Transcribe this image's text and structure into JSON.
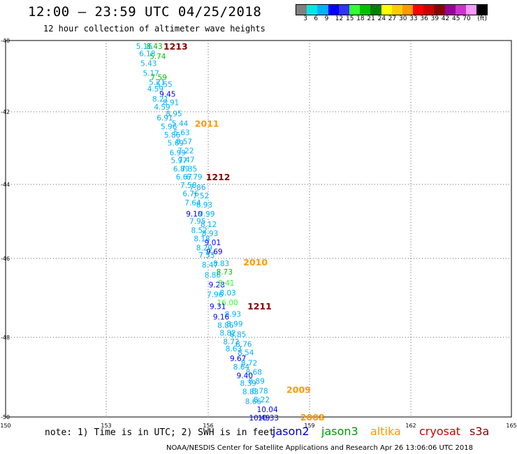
{
  "header": {
    "title": "12:00 — 23:59 UTC 04/25/2018",
    "subtitle": "12 hour collection of altimeter wave heights"
  },
  "scale": {
    "unit": "(ft)",
    "colors": [
      "#808080",
      "#00e5e5",
      "#00b0ff",
      "#0000ff",
      "#3333ff",
      "#33ff33",
      "#00c000",
      "#008000",
      "#ffff00",
      "#ffcc00",
      "#ff9900",
      "#ff0000",
      "#cc0000",
      "#880000",
      "#990099",
      "#cc33cc",
      "#ff99ff",
      "#000000"
    ],
    "labels": [
      "3",
      "6",
      "9",
      "12",
      "15",
      "18",
      "21",
      "24",
      "27",
      "30",
      "33",
      "36",
      "39",
      "42",
      "45",
      "70"
    ]
  },
  "chart_data": {
    "type": "scatter",
    "xlabel": "",
    "ylabel": "",
    "xlim": [
      150,
      165
    ],
    "ylim": [
      -50,
      -40
    ],
    "x_ticks": [
      "150",
      "153",
      "156",
      "159",
      "162",
      "165"
    ],
    "y_ticks": [
      "-40",
      "-42",
      "-44",
      "-46",
      "-48",
      "-50"
    ],
    "grid": true,
    "series": [
      {
        "name": "jason2",
        "color": "#0000cc"
      },
      {
        "name": "jason3",
        "color": "#009900"
      },
      {
        "name": "altika",
        "color": "#ff9900"
      },
      {
        "name": "cryosat",
        "color": "#cc0000"
      },
      {
        "name": "s3a",
        "color": "#880000"
      }
    ],
    "track_labels": [
      {
        "text": "1213",
        "x": 154.68,
        "y": -40.15,
        "color": "#880000"
      },
      {
        "text": "2011",
        "x": 155.61,
        "y": -42.2,
        "color": "#ff9900"
      },
      {
        "text": "1212",
        "x": 155.94,
        "y": -43.62,
        "color": "#880000"
      },
      {
        "text": "2010",
        "x": 157.05,
        "y": -45.88,
        "color": "#ff9900"
      },
      {
        "text": "1211",
        "x": 157.17,
        "y": -47.05,
        "color": "#880000"
      },
      {
        "text": "2009",
        "x": 158.33,
        "y": -49.27,
        "color": "#ff9900"
      },
      {
        "text": "2008",
        "x": 158.74,
        "y": -50.0,
        "color": "#ff9900"
      }
    ],
    "points": [
      {
        "x": 153.87,
        "y": -40.15,
        "v": "5.16",
        "c": "#00b0ff"
      },
      {
        "x": 154.17,
        "y": -40.15,
        "v": "8.43",
        "c": "#00c000"
      },
      {
        "x": 153.96,
        "y": -40.34,
        "v": "6.18",
        "c": "#00b0ff"
      },
      {
        "x": 154.27,
        "y": -40.42,
        "v": "5.74",
        "c": "#00c000"
      },
      {
        "x": 154.0,
        "y": -40.6,
        "v": "5.43",
        "c": "#00b0ff"
      },
      {
        "x": 154.07,
        "y": -40.86,
        "v": "5.17",
        "c": "#00b0ff"
      },
      {
        "x": 154.3,
        "y": -40.97,
        "v": "7.59",
        "c": "#00c000"
      },
      {
        "x": 154.25,
        "y": -41.1,
        "v": "5.21",
        "c": "#00b0ff"
      },
      {
        "x": 154.46,
        "y": -41.16,
        "v": "5.55",
        "c": "#00b0ff"
      },
      {
        "x": 154.2,
        "y": -41.28,
        "v": "4.59",
        "c": "#00b0ff"
      },
      {
        "x": 154.56,
        "y": -41.42,
        "v": "9.45",
        "c": "#0000ff"
      },
      {
        "x": 154.35,
        "y": -41.55,
        "v": "8.21",
        "c": "#00b0ff"
      },
      {
        "x": 154.66,
        "y": -41.64,
        "v": "8.91",
        "c": "#00b0ff"
      },
      {
        "x": 154.4,
        "y": -41.76,
        "v": "4.59",
        "c": "#00b0ff"
      },
      {
        "x": 154.75,
        "y": -41.94,
        "v": "8.95",
        "c": "#00b0ff"
      },
      {
        "x": 154.48,
        "y": -42.05,
        "v": "6.91",
        "c": "#00b0ff"
      },
      {
        "x": 154.93,
        "y": -42.2,
        "v": "5.44",
        "c": "#00b0ff"
      },
      {
        "x": 154.6,
        "y": -42.28,
        "v": "5.96",
        "c": "#00b0ff"
      },
      {
        "x": 154.98,
        "y": -42.44,
        "v": "5.63",
        "c": "#00b0ff"
      },
      {
        "x": 154.7,
        "y": -42.5,
        "v": "5.86",
        "c": "#00b0ff"
      },
      {
        "x": 155.05,
        "y": -42.68,
        "v": "8.57",
        "c": "#00b0ff"
      },
      {
        "x": 154.8,
        "y": -42.72,
        "v": "5.69",
        "c": "#00b0ff"
      },
      {
        "x": 155.1,
        "y": -42.92,
        "v": "7.22",
        "c": "#00b0ff"
      },
      {
        "x": 154.86,
        "y": -42.98,
        "v": "6.99",
        "c": "#00b0ff"
      },
      {
        "x": 155.12,
        "y": -43.16,
        "v": "7.47",
        "c": "#00b0ff"
      },
      {
        "x": 154.9,
        "y": -43.18,
        "v": "5.97",
        "c": "#00b0ff"
      },
      {
        "x": 155.2,
        "y": -43.4,
        "v": "7.35",
        "c": "#00b0ff"
      },
      {
        "x": 154.97,
        "y": -43.4,
        "v": "6.89",
        "c": "#00b0ff"
      },
      {
        "x": 155.05,
        "y": -43.62,
        "v": "6.67",
        "c": "#00b0ff"
      },
      {
        "x": 155.35,
        "y": -43.62,
        "v": "6.79",
        "c": "#00b0ff"
      },
      {
        "x": 155.18,
        "y": -43.84,
        "v": "7.58",
        "c": "#00b0ff"
      },
      {
        "x": 155.45,
        "y": -43.9,
        "v": "7.86",
        "c": "#00b0ff"
      },
      {
        "x": 155.25,
        "y": -44.06,
        "v": "6.76",
        "c": "#00b0ff"
      },
      {
        "x": 155.55,
        "y": -44.12,
        "v": "7.52",
        "c": "#00b0ff"
      },
      {
        "x": 155.31,
        "y": -44.3,
        "v": "7.64",
        "c": "#00b0ff"
      },
      {
        "x": 155.65,
        "y": -44.36,
        "v": "6.93",
        "c": "#00b0ff"
      },
      {
        "x": 155.35,
        "y": -44.6,
        "v": "9.10",
        "c": "#0000ff"
      },
      {
        "x": 155.72,
        "y": -44.6,
        "v": "9.99",
        "c": "#00b0ff"
      },
      {
        "x": 155.45,
        "y": -44.8,
        "v": "7.95",
        "c": "#00b0ff"
      },
      {
        "x": 155.78,
        "y": -44.88,
        "v": "8.12",
        "c": "#00b0ff"
      },
      {
        "x": 155.5,
        "y": -45.04,
        "v": "8.52",
        "c": "#00b0ff"
      },
      {
        "x": 155.82,
        "y": -45.12,
        "v": "8.93",
        "c": "#00b0ff"
      },
      {
        "x": 155.58,
        "y": -45.26,
        "v": "8.18",
        "c": "#00b0ff"
      },
      {
        "x": 155.9,
        "y": -45.36,
        "v": "9.01",
        "c": "#0000ff"
      },
      {
        "x": 155.65,
        "y": -45.5,
        "v": "8.29",
        "c": "#00b0ff"
      },
      {
        "x": 155.95,
        "y": -45.6,
        "v": "9.69",
        "c": "#0000ff"
      },
      {
        "x": 155.72,
        "y": -45.7,
        "v": "7.53",
        "c": "#00b0ff"
      },
      {
        "x": 155.82,
        "y": -45.96,
        "v": "8.47",
        "c": "#00b0ff"
      },
      {
        "x": 156.15,
        "y": -45.92,
        "v": "8.83",
        "c": "#00b0ff"
      },
      {
        "x": 155.9,
        "y": -46.22,
        "v": "8.86",
        "c": "#00b0ff"
      },
      {
        "x": 156.25,
        "y": -46.14,
        "v": "8.73",
        "c": "#00c000"
      },
      {
        "x": 156.02,
        "y": -46.48,
        "v": "9.28",
        "c": "#0000ff"
      },
      {
        "x": 156.3,
        "y": -46.44,
        "v": "8.41",
        "c": "#33ff33"
      },
      {
        "x": 155.97,
        "y": -46.74,
        "v": "7.96",
        "c": "#00b0ff"
      },
      {
        "x": 156.35,
        "y": -46.7,
        "v": "8.03",
        "c": "#00b0ff"
      },
      {
        "x": 156.27,
        "y": -46.96,
        "v": "16.00",
        "c": "#33ff33"
      },
      {
        "x": 156.05,
        "y": -47.06,
        "v": "9.31",
        "c": "#0000ff"
      },
      {
        "x": 156.5,
        "y": -47.26,
        "v": "8.93",
        "c": "#00b0ff"
      },
      {
        "x": 156.15,
        "y": -47.34,
        "v": "9.16",
        "c": "#0000ff"
      },
      {
        "x": 156.55,
        "y": -47.52,
        "v": "8.99",
        "c": "#00b0ff"
      },
      {
        "x": 156.28,
        "y": -47.56,
        "v": "8.86",
        "c": "#00b0ff"
      },
      {
        "x": 156.65,
        "y": -47.8,
        "v": "8.85",
        "c": "#00b0ff"
      },
      {
        "x": 156.35,
        "y": -47.76,
        "v": "8.82",
        "c": "#00b0ff"
      },
      {
        "x": 156.45,
        "y": -48.0,
        "v": "8.72",
        "c": "#00b0ff"
      },
      {
        "x": 156.82,
        "y": -48.06,
        "v": "8.76",
        "c": "#00b0ff"
      },
      {
        "x": 156.52,
        "y": -48.18,
        "v": "8.63",
        "c": "#00b0ff"
      },
      {
        "x": 156.88,
        "y": -48.28,
        "v": "8.54",
        "c": "#00b0ff"
      },
      {
        "x": 156.65,
        "y": -48.44,
        "v": "9.67",
        "c": "#0000ff"
      },
      {
        "x": 156.98,
        "y": -48.56,
        "v": "8.72",
        "c": "#00b0ff"
      },
      {
        "x": 156.75,
        "y": -48.66,
        "v": "8.64",
        "c": "#00b0ff"
      },
      {
        "x": 157.12,
        "y": -48.8,
        "v": "8.68",
        "c": "#00b0ff"
      },
      {
        "x": 156.85,
        "y": -48.9,
        "v": "9.40",
        "c": "#0000ff"
      },
      {
        "x": 157.2,
        "y": -49.04,
        "v": "8.89",
        "c": "#00b0ff"
      },
      {
        "x": 156.95,
        "y": -49.1,
        "v": "8.39",
        "c": "#00b0ff"
      },
      {
        "x": 157.3,
        "y": -49.3,
        "v": "8.78",
        "c": "#00b0ff"
      },
      {
        "x": 157.02,
        "y": -49.32,
        "v": "8.83",
        "c": "#00b0ff"
      },
      {
        "x": 157.35,
        "y": -49.54,
        "v": "8.22",
        "c": "#00b0ff"
      },
      {
        "x": 157.1,
        "y": -49.58,
        "v": "8.66",
        "c": "#00b0ff"
      },
      {
        "x": 157.45,
        "y": -49.8,
        "v": "10.04",
        "c": "#0000ff"
      },
      {
        "x": 157.22,
        "y": -50.02,
        "v": "10.49",
        "c": "#0000ff"
      },
      {
        "x": 157.48,
        "y": -50.02,
        "v": "10.33",
        "c": "#0000ff"
      }
    ]
  },
  "note": "note: 1) Time is in UTC; 2) SWH is in feet",
  "footer": "NOAA/NESDIS Center for Satellite Applications and Research   Apr 26 13:06:06 UTC 2018"
}
